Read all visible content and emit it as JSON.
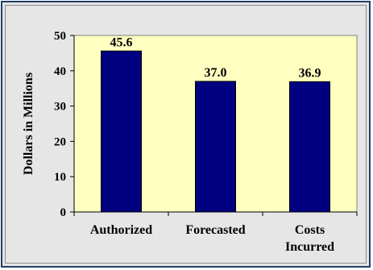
{
  "chart_data": {
    "type": "bar",
    "title": "",
    "ylabel": "Dollars in Millions",
    "xlabel": "",
    "categories": [
      [
        "Authorized"
      ],
      [
        "Forecasted"
      ],
      [
        "Costs",
        "Incurred"
      ]
    ],
    "values": [
      45.6,
      37.0,
      36.9
    ],
    "data_labels": [
      "45.6",
      "37.0",
      "36.9"
    ],
    "y_ticks": [
      "0",
      "10",
      "20",
      "30",
      "40",
      "50"
    ],
    "ylim": [
      0,
      50
    ],
    "grid": false,
    "legend": "none",
    "colors": {
      "bar": "#000080",
      "plot_area": "#ffffc0",
      "chart_area": "#e6e6e6",
      "frame": "#1f3f66"
    }
  }
}
